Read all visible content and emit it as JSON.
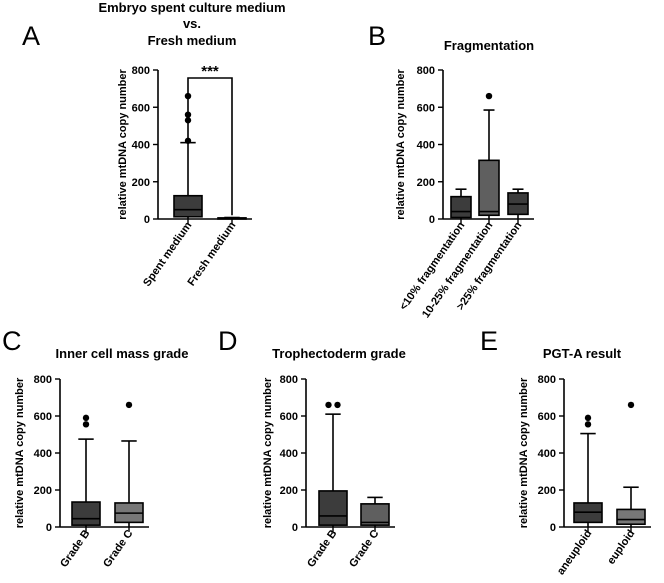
{
  "colors": {
    "dark_box": "#3c3c3c",
    "mid_box": "#5f5f5f",
    "light_box": "#777777",
    "line": "#000000",
    "background": "#ffffff"
  },
  "chart_data": [
    {
      "id": "A",
      "letter": "A",
      "type": "box",
      "title_lines": [
        "Embryo spent culture medium",
        "vs.",
        "Fresh medium"
      ],
      "ylabel": "relative mtDNA copy number",
      "ylim": [
        0,
        800
      ],
      "yticks": [
        0,
        200,
        400,
        600,
        800
      ],
      "significance": "***",
      "categories": [
        {
          "label": "Spent medium",
          "min": 0,
          "q1": 12,
          "median": 50,
          "q3": 125,
          "max": 410,
          "outliers": [
            420,
            530,
            560,
            660
          ],
          "color": "dark_box"
        },
        {
          "label": "Fresh medium",
          "min": 0,
          "q1": 0,
          "median": 2,
          "q3": 6,
          "max": 8,
          "outliers": [],
          "color": "dark_box"
        }
      ]
    },
    {
      "id": "B",
      "letter": "B",
      "type": "box",
      "title_lines": [
        "Fragmentation"
      ],
      "ylabel": "relative mtDNA copy number",
      "ylim": [
        0,
        800
      ],
      "yticks": [
        0,
        200,
        400,
        600,
        800
      ],
      "categories": [
        {
          "label": "<10% fragmentation",
          "min": 0,
          "q1": 8,
          "median": 40,
          "q3": 120,
          "max": 160,
          "outliers": [],
          "color": "dark_box"
        },
        {
          "label": "10-25% fragmentation",
          "min": 0,
          "q1": 20,
          "median": 40,
          "q3": 315,
          "max": 585,
          "outliers": [
            660
          ],
          "color": "mid_box"
        },
        {
          "label": ">25% fragmentation",
          "min": 0,
          "q1": 25,
          "median": 80,
          "q3": 140,
          "max": 160,
          "outliers": [],
          "color": "dark_box"
        }
      ]
    },
    {
      "id": "C",
      "letter": "C",
      "type": "box",
      "title_lines": [
        "Inner cell mass grade"
      ],
      "ylabel": "relative mtDNA copy number",
      "ylim": [
        0,
        800
      ],
      "yticks": [
        0,
        200,
        400,
        600,
        800
      ],
      "categories": [
        {
          "label": "Grade B",
          "min": 0,
          "q1": 10,
          "median": 45,
          "q3": 135,
          "max": 475,
          "outliers": [
            555,
            590
          ],
          "color": "dark_box"
        },
        {
          "label": "Grade C",
          "min": 0,
          "q1": 25,
          "median": 75,
          "q3": 130,
          "max": 465,
          "outliers": [
            660
          ],
          "color": "light_box"
        }
      ]
    },
    {
      "id": "D",
      "letter": "D",
      "type": "box",
      "title_lines": [
        "Trophectoderm grade"
      ],
      "ylabel": "relative mtDNA copy number",
      "ylim": [
        0,
        800
      ],
      "yticks": [
        0,
        200,
        400,
        600,
        800
      ],
      "categories": [
        {
          "label": "Grade B",
          "min": 0,
          "q1": 10,
          "median": 60,
          "q3": 195,
          "max": 610,
          "outliers": [
            660,
            660
          ],
          "color": "dark_box"
        },
        {
          "label": "Grade C",
          "min": 0,
          "q1": 10,
          "median": 25,
          "q3": 125,
          "max": 160,
          "outliers": [],
          "color": "mid_box"
        }
      ]
    },
    {
      "id": "E",
      "letter": "E",
      "type": "box",
      "title_lines": [
        "PGT-A result"
      ],
      "ylabel": "relative mtDNA copy number",
      "ylim": [
        0,
        800
      ],
      "yticks": [
        0,
        200,
        400,
        600,
        800
      ],
      "categories": [
        {
          "label": "aneuploid",
          "min": 0,
          "q1": 25,
          "median": 80,
          "q3": 130,
          "max": 505,
          "outliers": [
            555,
            590
          ],
          "color": "dark_box"
        },
        {
          "label": "euploid",
          "min": 0,
          "q1": 15,
          "median": 40,
          "q3": 95,
          "max": 215,
          "outliers": [
            660
          ],
          "color": "light_box"
        }
      ]
    }
  ]
}
